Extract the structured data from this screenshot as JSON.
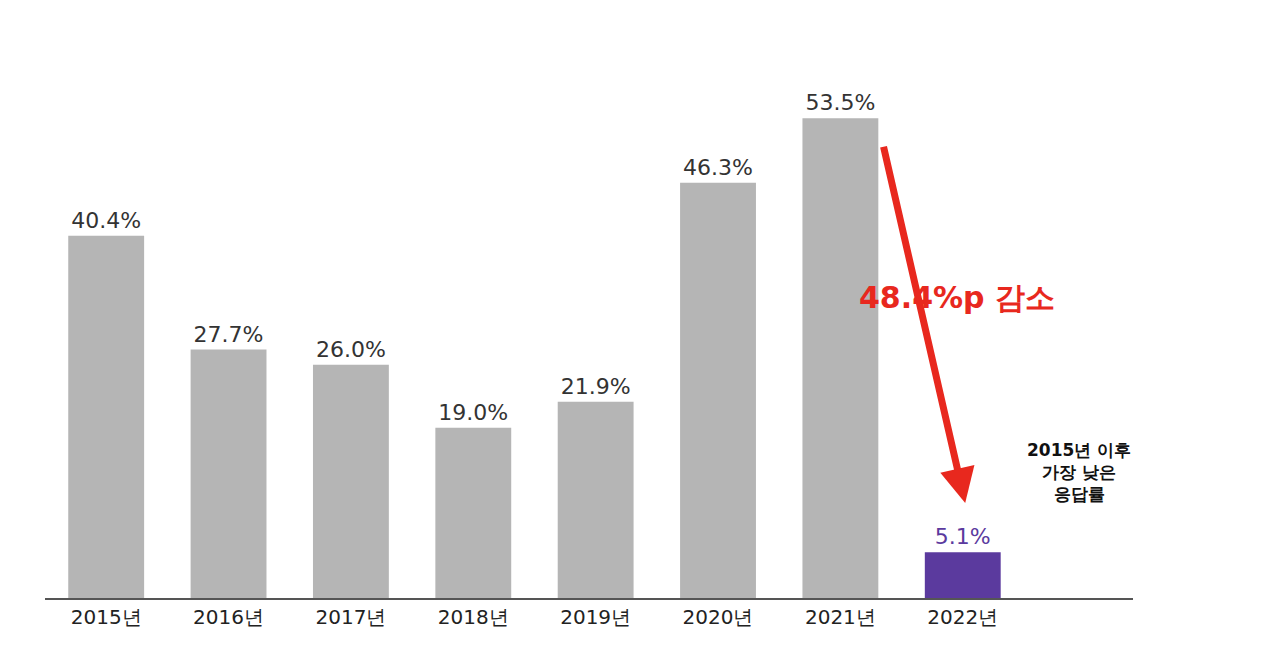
{
  "chart_data": {
    "type": "bar",
    "categories": [
      "2015년",
      "2016년",
      "2017년",
      "2018년",
      "2019년",
      "2020년",
      "2021년",
      "2022년"
    ],
    "values": [
      40.4,
      27.7,
      26.0,
      19.0,
      21.9,
      46.3,
      53.5,
      5.1
    ],
    "value_labels": [
      "40.4%",
      "27.7%",
      "26.0%",
      "19.0%",
      "21.9%",
      "46.3%",
      "53.5%",
      "5.1%"
    ],
    "colors": [
      "#b5b5b5",
      "#b5b5b5",
      "#b5b5b5",
      "#b5b5b5",
      "#b5b5b5",
      "#b5b5b5",
      "#b5b5b5",
      "#5b3a9e"
    ],
    "data_labels": true,
    "tick_labels": "x",
    "grid": false,
    "ylim": [
      0,
      60
    ],
    "annotations": [
      {
        "text": "48.4%p 감소",
        "color": "#e8281e"
      },
      {
        "lines": [
          "2015년 이후",
          "가장 낮은",
          "응답률"
        ],
        "color": "#111111"
      }
    ]
  }
}
